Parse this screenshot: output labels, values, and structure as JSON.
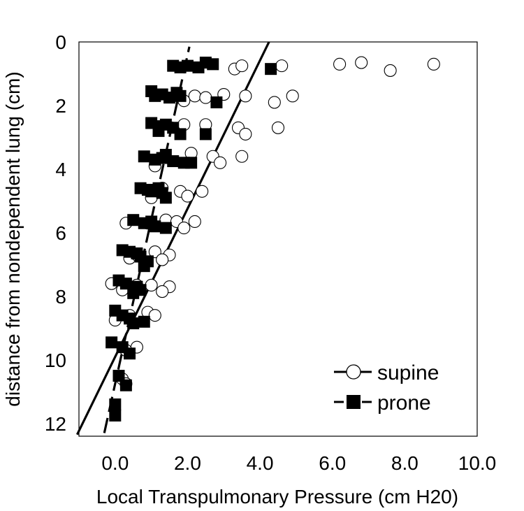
{
  "chart_data": {
    "type": "scatter",
    "xlabel": "Local Transpulmonary Pressure (cm H20)",
    "ylabel": "distance from nondependent lung (cm)",
    "xlim": [
      -1.0,
      10.0
    ],
    "ylim": [
      0,
      12.4
    ],
    "y_inverted": true,
    "x_ticks": [
      "0.0",
      "2.0",
      "4.0",
      "6.0",
      "8.0",
      "10.0"
    ],
    "x_tick_values": [
      0,
      2,
      4,
      6,
      8,
      10
    ],
    "y_ticks": [
      "0",
      "2",
      "4",
      "6",
      "8",
      "10",
      "12"
    ],
    "y_tick_values": [
      0,
      2,
      4,
      6,
      8,
      10,
      12
    ],
    "legend_position": "bottom-right",
    "series": [
      {
        "name": "supine",
        "marker": "open-circle",
        "points": [
          [
            3.3,
            0.85
          ],
          [
            3.5,
            0.75
          ],
          [
            4.6,
            0.75
          ],
          [
            6.2,
            0.7
          ],
          [
            6.8,
            0.65
          ],
          [
            7.6,
            0.9
          ],
          [
            8.8,
            0.7
          ],
          [
            2.2,
            1.7
          ],
          [
            2.5,
            1.75
          ],
          [
            3.0,
            1.65
          ],
          [
            3.6,
            1.7
          ],
          [
            4.4,
            1.9
          ],
          [
            4.9,
            1.7
          ],
          [
            1.9,
            1.85
          ],
          [
            1.9,
            2.6
          ],
          [
            2.5,
            2.6
          ],
          [
            3.4,
            2.7
          ],
          [
            3.6,
            2.9
          ],
          [
            4.5,
            2.7
          ],
          [
            2.1,
            3.5
          ],
          [
            2.7,
            3.6
          ],
          [
            3.5,
            3.6
          ],
          [
            2.9,
            3.8
          ],
          [
            1.1,
            3.9
          ],
          [
            1.3,
            4.6
          ],
          [
            1.8,
            4.7
          ],
          [
            2.4,
            4.7
          ],
          [
            2.0,
            4.85
          ],
          [
            1.0,
            4.9
          ],
          [
            0.3,
            5.7
          ],
          [
            0.9,
            5.7
          ],
          [
            1.4,
            5.6
          ],
          [
            1.7,
            5.65
          ],
          [
            2.2,
            5.65
          ],
          [
            1.9,
            5.85
          ],
          [
            0.4,
            6.8
          ],
          [
            1.1,
            6.6
          ],
          [
            1.5,
            6.7
          ],
          [
            1.3,
            6.85
          ],
          [
            0.6,
            6.7
          ],
          [
            -0.1,
            7.6
          ],
          [
            0.6,
            7.65
          ],
          [
            1.0,
            7.65
          ],
          [
            1.5,
            7.7
          ],
          [
            1.3,
            7.85
          ],
          [
            0.2,
            7.8
          ],
          [
            0.0,
            8.75
          ],
          [
            0.4,
            8.6
          ],
          [
            0.9,
            8.5
          ],
          [
            1.1,
            8.6
          ],
          [
            0.6,
            9.6
          ],
          [
            0.3,
            9.7
          ],
          [
            0.2,
            10.6
          ],
          [
            0.3,
            10.75
          ]
        ]
      },
      {
        "name": "prone",
        "marker": "filled-square",
        "points": [
          [
            1.6,
            0.75
          ],
          [
            1.8,
            0.8
          ],
          [
            2.0,
            0.75
          ],
          [
            2.3,
            0.8
          ],
          [
            2.5,
            0.65
          ],
          [
            2.7,
            0.7
          ],
          [
            4.3,
            0.85
          ],
          [
            1.0,
            1.55
          ],
          [
            1.1,
            1.7
          ],
          [
            1.3,
            1.65
          ],
          [
            1.5,
            1.75
          ],
          [
            1.7,
            1.6
          ],
          [
            1.8,
            1.7
          ],
          [
            2.8,
            1.9
          ],
          [
            1.0,
            2.55
          ],
          [
            1.2,
            2.65
          ],
          [
            1.4,
            2.6
          ],
          [
            1.6,
            2.7
          ],
          [
            1.2,
            2.8
          ],
          [
            1.8,
            2.9
          ],
          [
            2.5,
            2.9
          ],
          [
            0.8,
            3.6
          ],
          [
            1.1,
            3.7
          ],
          [
            1.3,
            3.65
          ],
          [
            1.4,
            3.55
          ],
          [
            1.6,
            3.75
          ],
          [
            1.9,
            3.8
          ],
          [
            2.1,
            3.8
          ],
          [
            0.7,
            4.6
          ],
          [
            0.9,
            4.65
          ],
          [
            1.0,
            4.7
          ],
          [
            1.2,
            4.6
          ],
          [
            1.3,
            4.75
          ],
          [
            1.4,
            4.9
          ],
          [
            0.5,
            5.6
          ],
          [
            0.8,
            5.7
          ],
          [
            1.0,
            5.65
          ],
          [
            1.1,
            5.8
          ],
          [
            1.4,
            5.85
          ],
          [
            0.2,
            6.55
          ],
          [
            0.4,
            6.6
          ],
          [
            0.6,
            6.65
          ],
          [
            0.7,
            6.75
          ],
          [
            0.9,
            6.9
          ],
          [
            0.8,
            7.05
          ],
          [
            0.1,
            7.5
          ],
          [
            0.3,
            7.6
          ],
          [
            0.6,
            7.7
          ],
          [
            0.7,
            7.8
          ],
          [
            0.5,
            7.9
          ],
          [
            0.0,
            8.45
          ],
          [
            0.2,
            8.6
          ],
          [
            0.4,
            8.7
          ],
          [
            0.5,
            8.85
          ],
          [
            0.8,
            8.8
          ],
          [
            -0.1,
            9.45
          ],
          [
            0.2,
            9.6
          ],
          [
            0.4,
            9.8
          ],
          [
            0.1,
            10.5
          ],
          [
            0.3,
            10.8
          ],
          [
            0.0,
            11.4
          ],
          [
            0.0,
            11.75
          ]
        ]
      }
    ],
    "fit_lines": [
      {
        "series": "supine",
        "style": "solid",
        "x": [
          -1.05,
          4.25
        ],
        "y": [
          12.35,
          0
        ]
      },
      {
        "series": "prone",
        "style": "dashed",
        "x": [
          -0.3,
          2.05
        ],
        "y": [
          12.3,
          0.15
        ]
      }
    ]
  }
}
